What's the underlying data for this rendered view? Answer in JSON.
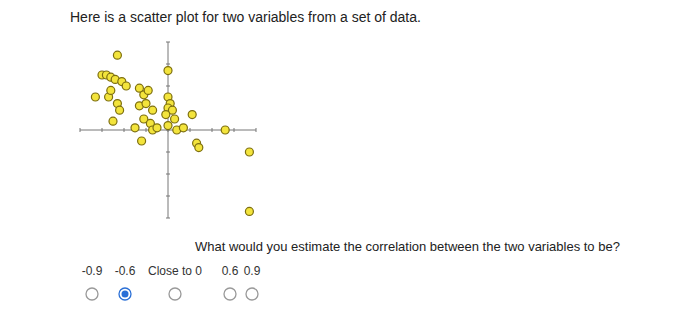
{
  "heading": "Here is a scatter plot for two variables from a set of data.",
  "chart_data": {
    "type": "scatter",
    "marker": "circle",
    "color": "#f3e43c",
    "x": [
      -2.3,
      -3.0,
      -2.8,
      -2.6,
      -2.4,
      -2.1,
      -1.9,
      -3.3,
      -2.7,
      -2.6,
      -2.3,
      -2.2,
      -2.5,
      -1.5,
      -1.3,
      -1.1,
      -0.9,
      -1.3,
      -1.0,
      -0.7,
      -1.1,
      -0.8,
      -0.7,
      -1.2,
      -0.5,
      0.0,
      0.0,
      0.1,
      0.0,
      0.2,
      -0.1,
      0.3,
      0.0,
      0.4,
      0.7,
      1.1,
      1.3,
      1.4,
      2.6,
      3.7,
      3.7
    ],
    "values": [
      3.4,
      2.5,
      2.5,
      2.4,
      2.3,
      2.2,
      2.0,
      1.5,
      1.5,
      1.8,
      1.2,
      0.9,
      0.4,
      0.1,
      1.9,
      1.6,
      1.8,
      1.1,
      1.2,
      0.9,
      0.5,
      0.3,
      0.0,
      -0.5,
      0.1,
      2.7,
      1.5,
      1.2,
      1.0,
      0.9,
      0.7,
      0.5,
      0.2,
      0.0,
      0.1,
      0.7,
      -0.6,
      -0.8,
      0.0,
      -1.0,
      -3.7
    ],
    "xlim": [
      -4,
      4
    ],
    "ylim": [
      -4,
      4
    ],
    "xticks": [
      -4,
      -3,
      -2,
      -1,
      0,
      1,
      2,
      3,
      4
    ],
    "yticks": [
      -4,
      -3,
      -2,
      -1,
      0,
      1,
      2,
      3,
      4
    ],
    "tick_labels": false,
    "grid": false
  },
  "question": "What would you estimate the correlation between the two variables to be?",
  "options": [
    "-0.9",
    "-0.6",
    "Close to 0",
    "0.6",
    "0.9"
  ],
  "selected": 1
}
